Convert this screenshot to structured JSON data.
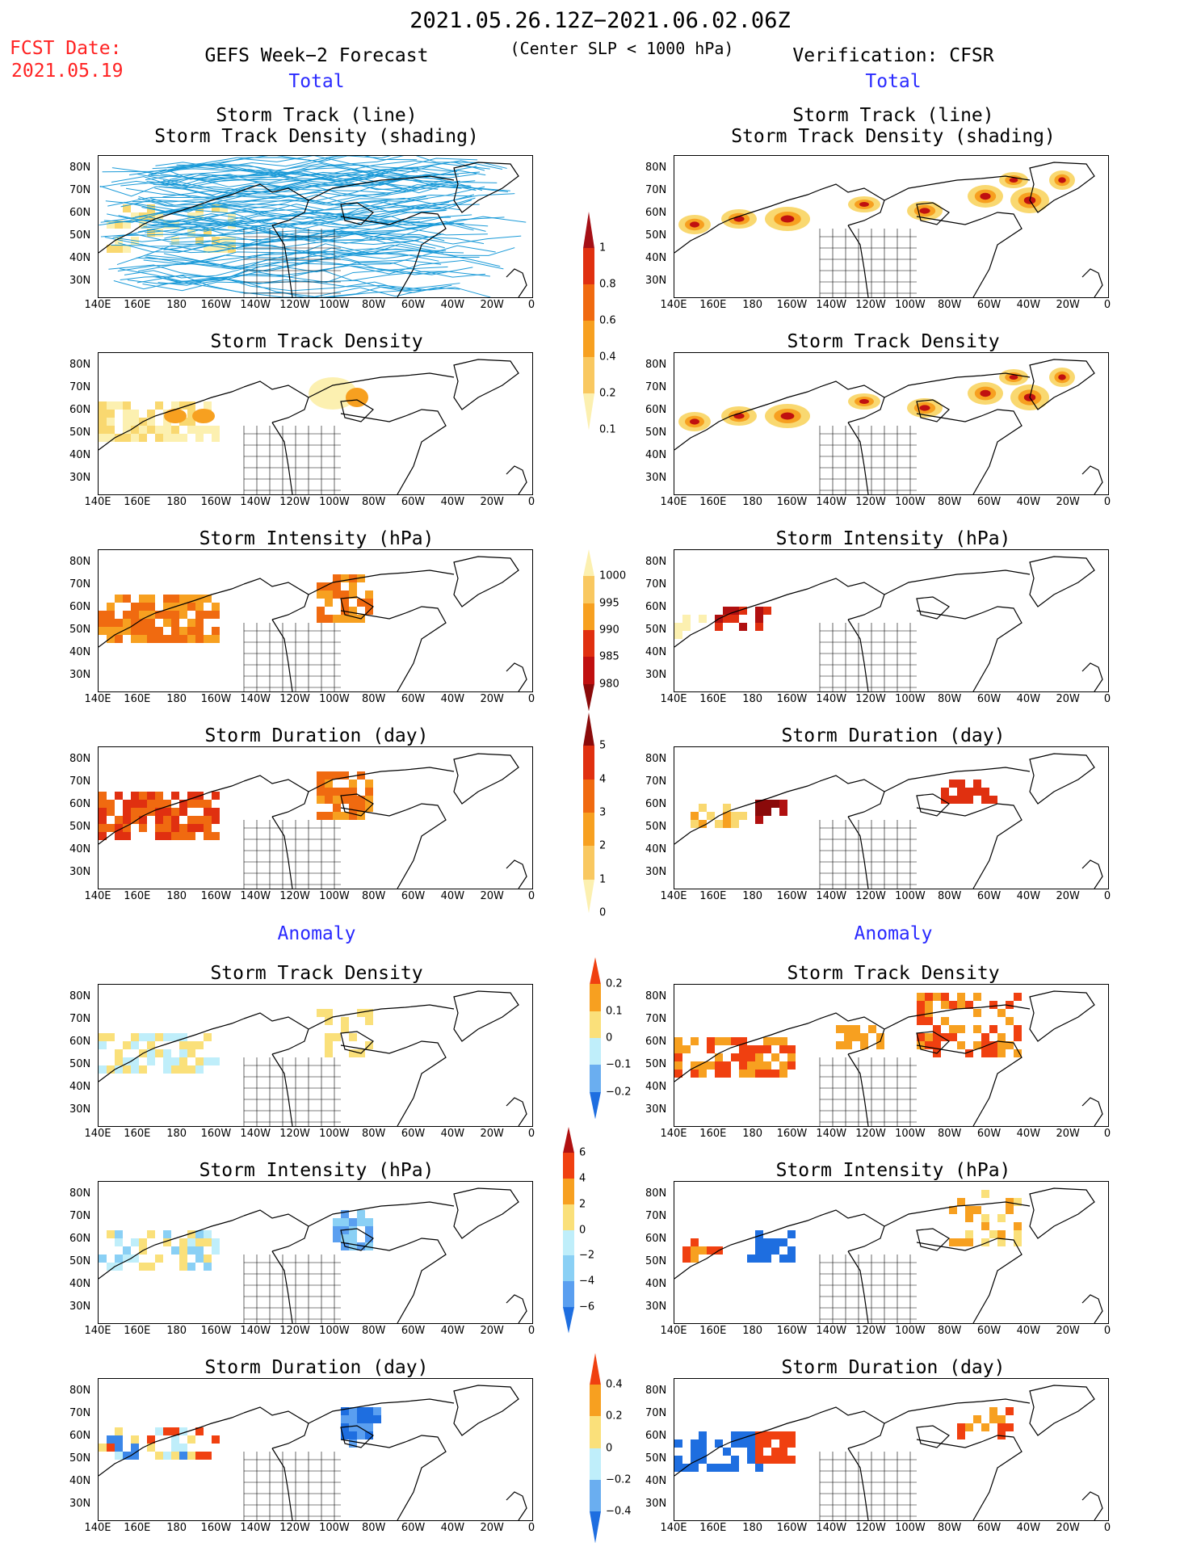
{
  "header": {
    "date_range": "2021.05.26.12Z−2021.06.02.06Z",
    "fcst_label": "FCST Date:",
    "fcst_date": "2021.05.19",
    "forecast_title": "GEFS Week−2 Forecast",
    "subtitle": "(Center SLP < 1000 hPa)",
    "verification_title": "Verification: CFSR",
    "section_total": "Total",
    "section_anomaly": "Anomaly"
  },
  "panel_titles": {
    "track_line": "Storm Track (line)",
    "track_density_shading": "Storm Track Density (shading)",
    "track_density": "Storm Track Density",
    "intensity": "Storm Intensity (hPa)",
    "duration": "Storm Duration (day)"
  },
  "axes": {
    "lat_labels": [
      "80N",
      "70N",
      "60N",
      "50N",
      "40N",
      "30N"
    ],
    "lon_labels": [
      "140E",
      "160E",
      "180",
      "160W",
      "140W",
      "120W",
      "100W",
      "80W",
      "60W",
      "40W",
      "20W",
      "0"
    ]
  },
  "colorbars": {
    "density_total": {
      "labels": [
        "1",
        "0.8",
        "0.6",
        "0.4",
        "0.2",
        "0.1"
      ],
      "colors": [
        "#a50f15",
        "#e03010",
        "#f06a10",
        "#f7a020",
        "#f9c860",
        "#fcf0b0"
      ]
    },
    "intensity_total": {
      "labels": [
        "1000",
        "995",
        "990",
        "985",
        "980"
      ],
      "colors": [
        "#fcf0b0",
        "#f9c860",
        "#f7a020",
        "#e03010",
        "#c01010",
        "#8a0a0a"
      ]
    },
    "duration_total": {
      "labels": [
        "5",
        "4",
        "3",
        "2",
        "1",
        "0"
      ],
      "colors": [
        "#8a0a0a",
        "#e03010",
        "#f06a10",
        "#f7a020",
        "#f9c860",
        "#fcf0b0"
      ]
    },
    "density_anom": {
      "labels": [
        "0.2",
        "0.1",
        "0",
        "−0.1",
        "−0.2"
      ],
      "colors": [
        "#f04010",
        "#f7a020",
        "#fae07a",
        "#bfeefa",
        "#6aaef0",
        "#1e6ee0"
      ]
    },
    "intensity_anom": {
      "labels": [
        "6",
        "4",
        "2",
        "0",
        "−2",
        "−4",
        "−6"
      ],
      "colors": [
        "#b01010",
        "#f04010",
        "#f7a020",
        "#fae07a",
        "#bfeefa",
        "#8ad0f5",
        "#5a9ff0",
        "#1e6ee0"
      ]
    },
    "duration_anom": {
      "labels": [
        "0.4",
        "0.2",
        "0",
        "−0.2",
        "−0.4"
      ],
      "colors": [
        "#f04010",
        "#f7a020",
        "#fae07a",
        "#bfeefa",
        "#6aaef0",
        "#1e6ee0"
      ]
    }
  }
}
